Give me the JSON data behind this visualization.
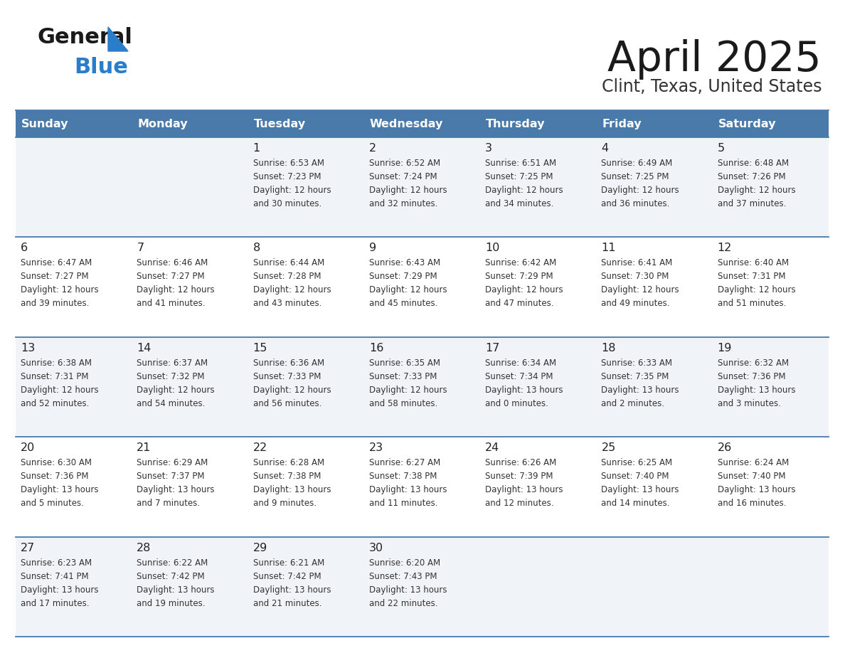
{
  "title": "April 2025",
  "subtitle": "Clint, Texas, United States",
  "header_color": "#4a7aaa",
  "header_text_color": "#ffffff",
  "cell_bg_odd": "#f0f4f8",
  "cell_bg_even": "#ffffff",
  "border_color": "#4a7aaa",
  "text_color": "#222222",
  "day_names": [
    "Sunday",
    "Monday",
    "Tuesday",
    "Wednesday",
    "Thursday",
    "Friday",
    "Saturday"
  ],
  "calendar": [
    [
      {
        "day": "",
        "lines": []
      },
      {
        "day": "",
        "lines": []
      },
      {
        "day": "1",
        "lines": [
          "Sunrise: 6:53 AM",
          "Sunset: 7:23 PM",
          "Daylight: 12 hours",
          "and 30 minutes."
        ]
      },
      {
        "day": "2",
        "lines": [
          "Sunrise: 6:52 AM",
          "Sunset: 7:24 PM",
          "Daylight: 12 hours",
          "and 32 minutes."
        ]
      },
      {
        "day": "3",
        "lines": [
          "Sunrise: 6:51 AM",
          "Sunset: 7:25 PM",
          "Daylight: 12 hours",
          "and 34 minutes."
        ]
      },
      {
        "day": "4",
        "lines": [
          "Sunrise: 6:49 AM",
          "Sunset: 7:25 PM",
          "Daylight: 12 hours",
          "and 36 minutes."
        ]
      },
      {
        "day": "5",
        "lines": [
          "Sunrise: 6:48 AM",
          "Sunset: 7:26 PM",
          "Daylight: 12 hours",
          "and 37 minutes."
        ]
      }
    ],
    [
      {
        "day": "6",
        "lines": [
          "Sunrise: 6:47 AM",
          "Sunset: 7:27 PM",
          "Daylight: 12 hours",
          "and 39 minutes."
        ]
      },
      {
        "day": "7",
        "lines": [
          "Sunrise: 6:46 AM",
          "Sunset: 7:27 PM",
          "Daylight: 12 hours",
          "and 41 minutes."
        ]
      },
      {
        "day": "8",
        "lines": [
          "Sunrise: 6:44 AM",
          "Sunset: 7:28 PM",
          "Daylight: 12 hours",
          "and 43 minutes."
        ]
      },
      {
        "day": "9",
        "lines": [
          "Sunrise: 6:43 AM",
          "Sunset: 7:29 PM",
          "Daylight: 12 hours",
          "and 45 minutes."
        ]
      },
      {
        "day": "10",
        "lines": [
          "Sunrise: 6:42 AM",
          "Sunset: 7:29 PM",
          "Daylight: 12 hours",
          "and 47 minutes."
        ]
      },
      {
        "day": "11",
        "lines": [
          "Sunrise: 6:41 AM",
          "Sunset: 7:30 PM",
          "Daylight: 12 hours",
          "and 49 minutes."
        ]
      },
      {
        "day": "12",
        "lines": [
          "Sunrise: 6:40 AM",
          "Sunset: 7:31 PM",
          "Daylight: 12 hours",
          "and 51 minutes."
        ]
      }
    ],
    [
      {
        "day": "13",
        "lines": [
          "Sunrise: 6:38 AM",
          "Sunset: 7:31 PM",
          "Daylight: 12 hours",
          "and 52 minutes."
        ]
      },
      {
        "day": "14",
        "lines": [
          "Sunrise: 6:37 AM",
          "Sunset: 7:32 PM",
          "Daylight: 12 hours",
          "and 54 minutes."
        ]
      },
      {
        "day": "15",
        "lines": [
          "Sunrise: 6:36 AM",
          "Sunset: 7:33 PM",
          "Daylight: 12 hours",
          "and 56 minutes."
        ]
      },
      {
        "day": "16",
        "lines": [
          "Sunrise: 6:35 AM",
          "Sunset: 7:33 PM",
          "Daylight: 12 hours",
          "and 58 minutes."
        ]
      },
      {
        "day": "17",
        "lines": [
          "Sunrise: 6:34 AM",
          "Sunset: 7:34 PM",
          "Daylight: 13 hours",
          "and 0 minutes."
        ]
      },
      {
        "day": "18",
        "lines": [
          "Sunrise: 6:33 AM",
          "Sunset: 7:35 PM",
          "Daylight: 13 hours",
          "and 2 minutes."
        ]
      },
      {
        "day": "19",
        "lines": [
          "Sunrise: 6:32 AM",
          "Sunset: 7:36 PM",
          "Daylight: 13 hours",
          "and 3 minutes."
        ]
      }
    ],
    [
      {
        "day": "20",
        "lines": [
          "Sunrise: 6:30 AM",
          "Sunset: 7:36 PM",
          "Daylight: 13 hours",
          "and 5 minutes."
        ]
      },
      {
        "day": "21",
        "lines": [
          "Sunrise: 6:29 AM",
          "Sunset: 7:37 PM",
          "Daylight: 13 hours",
          "and 7 minutes."
        ]
      },
      {
        "day": "22",
        "lines": [
          "Sunrise: 6:28 AM",
          "Sunset: 7:38 PM",
          "Daylight: 13 hours",
          "and 9 minutes."
        ]
      },
      {
        "day": "23",
        "lines": [
          "Sunrise: 6:27 AM",
          "Sunset: 7:38 PM",
          "Daylight: 13 hours",
          "and 11 minutes."
        ]
      },
      {
        "day": "24",
        "lines": [
          "Sunrise: 6:26 AM",
          "Sunset: 7:39 PM",
          "Daylight: 13 hours",
          "and 12 minutes."
        ]
      },
      {
        "day": "25",
        "lines": [
          "Sunrise: 6:25 AM",
          "Sunset: 7:40 PM",
          "Daylight: 13 hours",
          "and 14 minutes."
        ]
      },
      {
        "day": "26",
        "lines": [
          "Sunrise: 6:24 AM",
          "Sunset: 7:40 PM",
          "Daylight: 13 hours",
          "and 16 minutes."
        ]
      }
    ],
    [
      {
        "day": "27",
        "lines": [
          "Sunrise: 6:23 AM",
          "Sunset: 7:41 PM",
          "Daylight: 13 hours",
          "and 17 minutes."
        ]
      },
      {
        "day": "28",
        "lines": [
          "Sunrise: 6:22 AM",
          "Sunset: 7:42 PM",
          "Daylight: 13 hours",
          "and 19 minutes."
        ]
      },
      {
        "day": "29",
        "lines": [
          "Sunrise: 6:21 AM",
          "Sunset: 7:42 PM",
          "Daylight: 13 hours",
          "and 21 minutes."
        ]
      },
      {
        "day": "30",
        "lines": [
          "Sunrise: 6:20 AM",
          "Sunset: 7:43 PM",
          "Daylight: 13 hours",
          "and 22 minutes."
        ]
      },
      {
        "day": "",
        "lines": []
      },
      {
        "day": "",
        "lines": []
      },
      {
        "day": "",
        "lines": []
      }
    ]
  ],
  "logo_general_color": "#1a1a1a",
  "logo_blue_color": "#2a7dc9",
  "logo_triangle_color": "#2a7dc9"
}
